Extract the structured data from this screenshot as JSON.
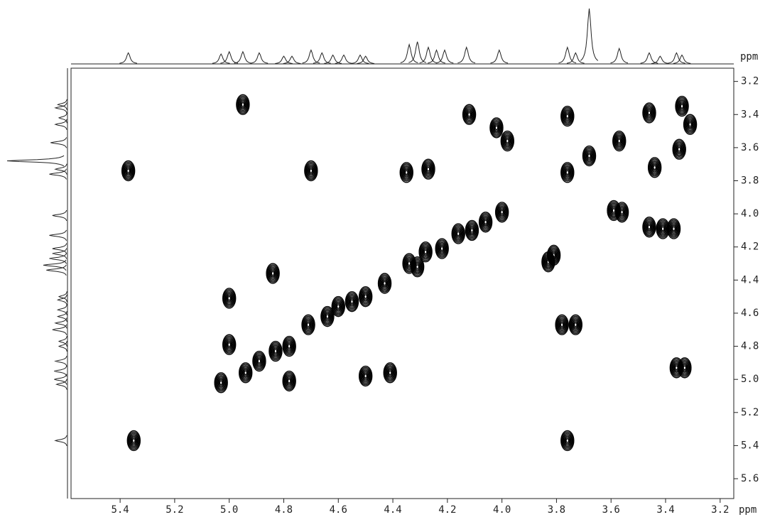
{
  "chart_data": {
    "type": "contour2d",
    "xlabel": "ppm",
    "ylabel": "ppm",
    "xlim": [
      5.58,
      3.15
    ],
    "ylim": [
      3.12,
      5.72
    ],
    "xticks": [
      5.4,
      5.2,
      {
        "value": 5,
        "label": "5.0"
      },
      4.8,
      4.6,
      4.4,
      4.2,
      {
        "value": 4,
        "label": "4.0"
      },
      3.8,
      3.6,
      3.4,
      3.2
    ],
    "yticks": [
      3.2,
      3.4,
      3.6,
      3.8,
      {
        "value": 4,
        "label": "4.0"
      },
      4.2,
      4.4,
      4.6,
      4.8,
      {
        "value": 5,
        "label": "5.0"
      },
      5.2,
      5.4,
      5.6
    ],
    "color": "#000000",
    "x": [
      4.95,
      5.37,
      4.7,
      4.35,
      4.27,
      4.12,
      4.02,
      3.98,
      3.76,
      3.76,
      3.68,
      3.57,
      3.46,
      3.34,
      3.35,
      3.44,
      3.59,
      3.56,
      3.46,
      3.41,
      3.37,
      4.0,
      4.06,
      4.11,
      4.16,
      4.22,
      4.28,
      4.34,
      4.31,
      3.83,
      3.81,
      4.43,
      4.84,
      5.0,
      5.0,
      5.03,
      4.94,
      4.89,
      4.83,
      4.78,
      4.71,
      4.64,
      4.6,
      4.55,
      4.5,
      4.78,
      4.5,
      4.41,
      3.78,
      3.73,
      5.35,
      3.76,
      3.36,
      3.33,
      3.31
    ],
    "y": [
      3.34,
      3.74,
      3.74,
      3.75,
      3.73,
      3.4,
      3.48,
      3.56,
      3.41,
      3.75,
      3.65,
      3.56,
      3.39,
      3.35,
      3.61,
      3.72,
      3.98,
      3.99,
      4.08,
      4.09,
      4.09,
      3.99,
      4.05,
      4.1,
      4.12,
      4.21,
      4.23,
      4.3,
      4.32,
      4.29,
      4.25,
      4.42,
      4.36,
      4.51,
      4.79,
      5.02,
      4.96,
      4.89,
      4.83,
      4.8,
      4.67,
      4.62,
      4.56,
      4.53,
      4.5,
      5.01,
      4.98,
      4.96,
      4.67,
      4.67,
      5.37,
      5.37,
      4.93,
      4.93,
      3.46
    ],
    "projection": {
      "peaks": [
        5.37,
        5.03,
        5.0,
        4.95,
        4.89,
        4.8,
        4.77,
        4.7,
        4.66,
        4.62,
        4.58,
        4.52,
        4.5,
        4.34,
        4.31,
        4.27,
        4.24,
        4.21,
        4.13,
        4.01,
        3.76,
        3.73,
        3.68,
        3.57,
        3.46,
        3.42,
        3.36,
        3.34
      ],
      "heights": [
        0.2,
        0.18,
        0.22,
        0.22,
        0.2,
        0.14,
        0.14,
        0.25,
        0.2,
        0.16,
        0.16,
        0.16,
        0.14,
        0.35,
        0.4,
        0.3,
        0.25,
        0.25,
        0.3,
        0.25,
        0.3,
        0.2,
        1.0,
        0.28,
        0.2,
        0.14,
        0.2,
        0.16
      ]
    }
  }
}
